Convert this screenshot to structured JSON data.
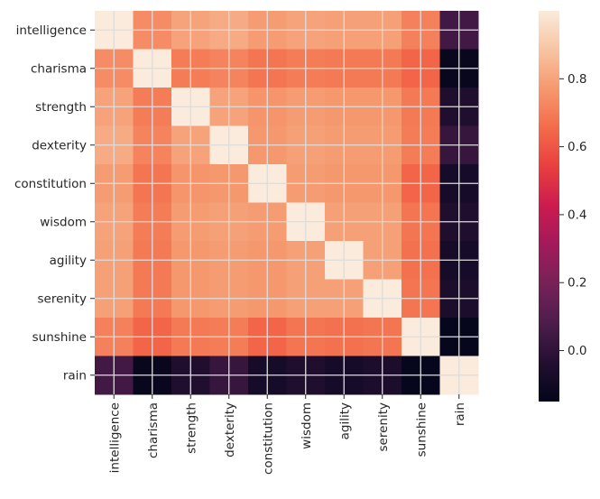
{
  "chart_data": {
    "type": "heatmap",
    "title": "",
    "xlabel": "",
    "ylabel": "",
    "row_labels": [
      "intelligence",
      "charisma",
      "strength",
      "dexterity",
      "constitution",
      "wisdom",
      "agility",
      "serenity",
      "sunshine",
      "rain"
    ],
    "col_labels": [
      "intelligence",
      "charisma",
      "strength",
      "dexterity",
      "constitution",
      "wisdom",
      "agility",
      "serenity",
      "sunshine",
      "rain"
    ],
    "values": [
      [
        1.0,
        0.74,
        0.8,
        0.82,
        0.78,
        0.8,
        0.79,
        0.79,
        0.71,
        0.05
      ],
      [
        0.74,
        1.0,
        0.7,
        0.72,
        0.68,
        0.7,
        0.69,
        0.69,
        0.64,
        -0.13
      ],
      [
        0.8,
        0.7,
        1.0,
        0.8,
        0.76,
        0.78,
        0.77,
        0.77,
        0.69,
        -0.05
      ],
      [
        0.82,
        0.72,
        0.8,
        1.0,
        0.77,
        0.79,
        0.78,
        0.78,
        0.7,
        0.02
      ],
      [
        0.78,
        0.68,
        0.76,
        0.77,
        1.0,
        0.78,
        0.77,
        0.77,
        0.64,
        -0.08
      ],
      [
        0.8,
        0.7,
        0.78,
        0.79,
        0.78,
        1.0,
        0.79,
        0.79,
        0.68,
        -0.05
      ],
      [
        0.79,
        0.69,
        0.77,
        0.78,
        0.77,
        0.79,
        1.0,
        0.79,
        0.67,
        -0.08
      ],
      [
        0.79,
        0.69,
        0.77,
        0.78,
        0.77,
        0.79,
        0.79,
        1.0,
        0.68,
        -0.06
      ],
      [
        0.71,
        0.64,
        0.69,
        0.7,
        0.64,
        0.68,
        0.67,
        0.68,
        1.0,
        -0.14
      ],
      [
        0.05,
        -0.13,
        -0.05,
        0.02,
        -0.08,
        -0.05,
        -0.08,
        -0.06,
        -0.14,
        1.0
      ]
    ],
    "vmin": -0.15,
    "vmax": 1.0,
    "colormap": "rocket",
    "colorbar_ticks": [
      0.0,
      0.2,
      0.4,
      0.6,
      0.8
    ],
    "colorbar_tick_labels": [
      "0.0",
      "0.2",
      "0.4",
      "0.6",
      "0.8"
    ],
    "grid": true,
    "grid_color": "#dddddd",
    "legend": "colorbar-right"
  }
}
